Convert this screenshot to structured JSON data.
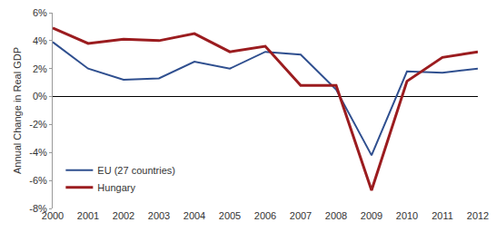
{
  "chart_data": {
    "type": "line",
    "y_label": "Annual Change in Real GDP",
    "categories": [
      "2000",
      "2001",
      "2002",
      "2003",
      "2004",
      "2005",
      "2006",
      "2007",
      "2008",
      "2009",
      "2010",
      "2011",
      "2012"
    ],
    "series": [
      {
        "name": "EU (27 countries)",
        "color": "#2f4f8f",
        "values": [
          3.9,
          2.0,
          1.2,
          1.3,
          2.5,
          2.0,
          3.2,
          3.0,
          0.5,
          -4.2,
          1.8,
          1.7,
          2.0
        ]
      },
      {
        "name": "Hungary",
        "color": "#9b1c1f",
        "values": [
          4.9,
          3.8,
          4.1,
          4.0,
          4.5,
          3.2,
          3.6,
          0.8,
          0.8,
          -6.7,
          1.1,
          2.8,
          3.2
        ]
      }
    ],
    "ylim": [
      -8,
      6
    ],
    "yticks": [
      {
        "value": -8,
        "label": "-8%"
      },
      {
        "value": -6,
        "label": "-6%"
      },
      {
        "value": -4,
        "label": "-4%"
      },
      {
        "value": -2,
        "label": "-2%"
      },
      {
        "value": 0,
        "label": "0%"
      },
      {
        "value": 2,
        "label": "2%"
      },
      {
        "value": 4,
        "label": "4%"
      },
      {
        "value": 6,
        "label": "6%"
      }
    ],
    "grid": false,
    "legend": "lower left"
  }
}
